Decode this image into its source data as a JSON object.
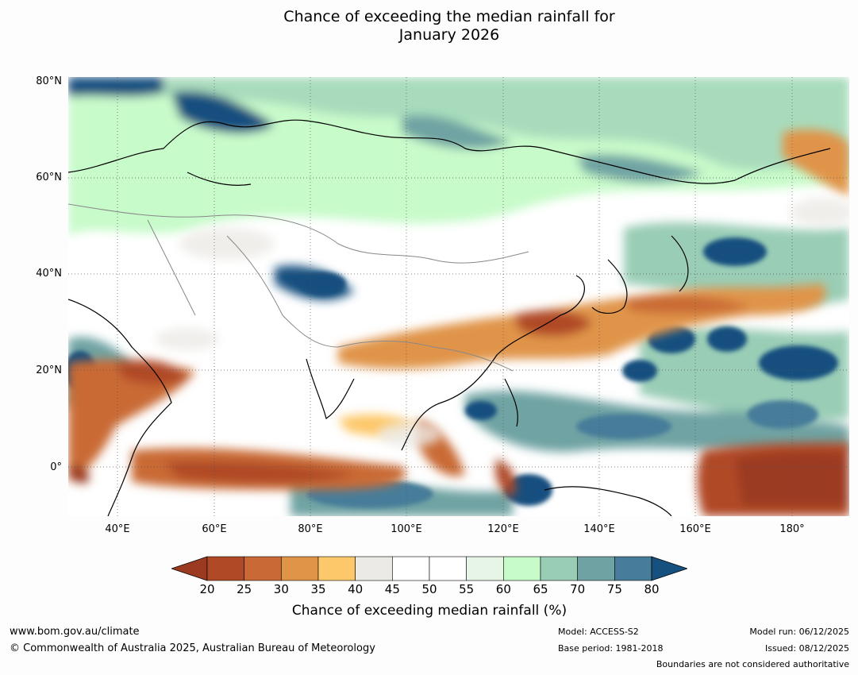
{
  "title": {
    "line1": "Chance of exceeding the median rainfall for",
    "line2": "January 2026"
  },
  "axes": {
    "lat_labels": [
      "80°N",
      "60°N",
      "40°N",
      "20°N",
      "0°"
    ],
    "lon_labels": [
      "40°E",
      "60°E",
      "80°E",
      "100°E",
      "120°E",
      "140°E",
      "160°E",
      "180°"
    ]
  },
  "colorbar": {
    "label": "Chance of exceeding median rainfall (%)",
    "ticks": [
      "20",
      "25",
      "30",
      "35",
      "40",
      "45",
      "50",
      "55",
      "60",
      "65",
      "70",
      "75",
      "80"
    ],
    "colors": [
      "#9b3a20",
      "#b04a26",
      "#c96a36",
      "#e09448",
      "#fdc86a",
      "#eceae6",
      "#ffffff",
      "#ffffff",
      "#e7f5e7",
      "#c8fbca",
      "#9acdb6",
      "#6fa3a3",
      "#477d9a",
      "#16507f"
    ]
  },
  "footer": {
    "website": "www.bom.gov.au/climate",
    "copyright": "© Commonwealth of Australia 2025, Australian Bureau of Meteorology",
    "model": "Model: ACCESS-S2",
    "base_period": "Base period: 1981-2018",
    "model_run": "Model run: 06/12/2025",
    "issued": "Issued: 08/12/2025",
    "disclaimer": "Boundaries are not considered authoritative"
  }
}
